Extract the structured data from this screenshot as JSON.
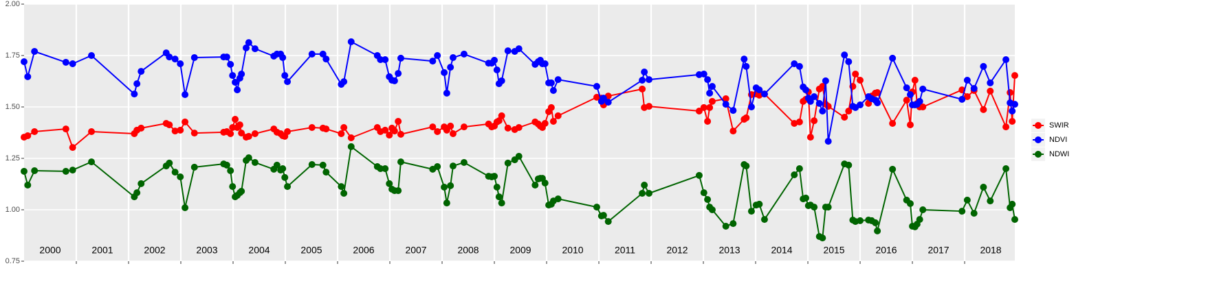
{
  "chart_data": {
    "type": "line",
    "x": [
      2000.0,
      2000.07,
      2000.2,
      2000.8,
      2000.93,
      2001.29,
      2002.11,
      2002.16,
      2002.24,
      2002.72,
      2002.78,
      2002.89,
      2002.99,
      2003.08,
      2003.26,
      2003.82,
      2003.88,
      2003.95,
      2003.99,
      2004.04,
      2004.08,
      2004.13,
      2004.16,
      2004.25,
      2004.3,
      2004.42,
      2004.78,
      2004.84,
      2004.91,
      2004.95,
      2004.99,
      2005.04,
      2005.51,
      2005.72,
      2005.78,
      2006.07,
      2006.12,
      2006.26,
      2006.76,
      2006.82,
      2006.91,
      2006.99,
      2007.04,
      2007.09,
      2007.16,
      2007.21,
      2007.82,
      2007.91,
      2008.04,
      2008.09,
      2008.16,
      2008.21,
      2008.42,
      2008.89,
      2008.95,
      2009.0,
      2009.05,
      2009.09,
      2009.14,
      2009.26,
      2009.39,
      2009.47,
      2009.78,
      2009.84,
      2009.88,
      2009.92,
      2009.97,
      2010.04,
      2010.09,
      2010.13,
      2010.22,
      2010.96,
      2011.05,
      2011.09,
      2011.18,
      2011.83,
      2011.87,
      2011.96,
      2012.92,
      2013.01,
      2013.08,
      2013.12,
      2013.17,
      2013.43,
      2013.57,
      2013.78,
      2013.82,
      2013.92,
      2014.01,
      2014.07,
      2014.17,
      2014.74,
      2014.84,
      2014.91,
      2014.96,
      2015.01,
      2015.05,
      2015.12,
      2015.22,
      2015.28,
      2015.34,
      2015.39,
      2015.7,
      2015.78,
      2015.86,
      2015.91,
      2016.0,
      2016.16,
      2016.22,
      2016.29,
      2016.33,
      2016.62,
      2016.89,
      2016.96,
      2017.0,
      2017.05,
      2017.09,
      2017.14,
      2017.2,
      2017.95,
      2018.05,
      2018.18,
      2018.36,
      2018.49,
      2018.79,
      2018.87,
      2018.91,
      2018.96
    ],
    "series": [
      {
        "name": "SWIR",
        "color": "#ff0000",
        "values": [
          1.353,
          1.36,
          1.38,
          1.393,
          1.303,
          1.38,
          1.37,
          1.387,
          1.397,
          1.42,
          1.413,
          1.383,
          1.387,
          1.427,
          1.373,
          1.377,
          1.38,
          1.37,
          1.4,
          1.44,
          1.4,
          1.413,
          1.373,
          1.353,
          1.357,
          1.37,
          1.393,
          1.377,
          1.37,
          1.36,
          1.357,
          1.38,
          1.4,
          1.397,
          1.393,
          1.37,
          1.4,
          1.35,
          1.4,
          1.38,
          1.387,
          1.363,
          1.397,
          1.383,
          1.43,
          1.367,
          1.403,
          1.38,
          1.403,
          1.387,
          1.407,
          1.37,
          1.403,
          1.417,
          1.403,
          1.407,
          1.427,
          1.433,
          1.457,
          1.397,
          1.39,
          1.4,
          1.427,
          1.417,
          1.407,
          1.4,
          1.42,
          1.477,
          1.497,
          1.43,
          1.457,
          1.547,
          1.543,
          1.51,
          1.553,
          1.587,
          1.497,
          1.503,
          1.48,
          1.497,
          1.43,
          1.497,
          1.527,
          1.54,
          1.383,
          1.44,
          1.447,
          1.56,
          1.563,
          1.557,
          1.563,
          1.42,
          1.427,
          1.527,
          1.537,
          1.573,
          1.353,
          1.433,
          1.587,
          1.6,
          1.513,
          1.503,
          1.45,
          1.48,
          1.6,
          1.66,
          1.63,
          1.517,
          1.553,
          1.567,
          1.57,
          1.42,
          1.533,
          1.413,
          1.573,
          1.63,
          1.517,
          1.5,
          1.5,
          1.583,
          1.55,
          1.58,
          1.487,
          1.577,
          1.403,
          1.57,
          1.43,
          1.653
        ]
      },
      {
        "name": "NDVI",
        "color": "#0000ff",
        "values": [
          1.72,
          1.647,
          1.77,
          1.717,
          1.71,
          1.75,
          1.563,
          1.613,
          1.673,
          1.763,
          1.743,
          1.733,
          1.71,
          1.56,
          1.74,
          1.743,
          1.743,
          1.707,
          1.653,
          1.62,
          1.583,
          1.64,
          1.66,
          1.787,
          1.813,
          1.783,
          1.747,
          1.757,
          1.757,
          1.74,
          1.653,
          1.623,
          1.757,
          1.757,
          1.733,
          1.61,
          1.623,
          1.817,
          1.75,
          1.73,
          1.73,
          1.647,
          1.63,
          1.627,
          1.663,
          1.737,
          1.723,
          1.75,
          1.667,
          1.567,
          1.693,
          1.74,
          1.757,
          1.713,
          1.713,
          1.727,
          1.68,
          1.613,
          1.627,
          1.773,
          1.77,
          1.783,
          1.707,
          1.72,
          1.727,
          1.71,
          1.71,
          1.617,
          1.617,
          1.58,
          1.633,
          1.6,
          1.527,
          1.543,
          1.523,
          1.63,
          1.67,
          1.633,
          1.657,
          1.66,
          1.633,
          1.567,
          1.6,
          1.513,
          1.483,
          1.733,
          1.697,
          1.5,
          1.593,
          1.583,
          1.563,
          1.71,
          1.697,
          1.597,
          1.583,
          1.543,
          1.527,
          1.55,
          1.517,
          1.48,
          1.627,
          1.333,
          1.753,
          1.72,
          1.503,
          1.497,
          1.51,
          1.55,
          1.54,
          1.533,
          1.52,
          1.737,
          1.593,
          1.56,
          1.51,
          1.51,
          1.513,
          1.527,
          1.587,
          1.537,
          1.63,
          1.59,
          1.697,
          1.617,
          1.73,
          1.52,
          1.48,
          1.513
        ]
      },
      {
        "name": "NDWI",
        "color": "#006400",
        "values": [
          1.187,
          1.12,
          1.19,
          1.187,
          1.193,
          1.233,
          1.063,
          1.083,
          1.127,
          1.213,
          1.227,
          1.183,
          1.16,
          1.01,
          1.207,
          1.223,
          1.217,
          1.19,
          1.113,
          1.063,
          1.07,
          1.083,
          1.09,
          1.24,
          1.253,
          1.23,
          1.197,
          1.217,
          1.193,
          1.2,
          1.157,
          1.113,
          1.22,
          1.217,
          1.183,
          1.113,
          1.08,
          1.307,
          1.21,
          1.2,
          1.2,
          1.127,
          1.1,
          1.093,
          1.093,
          1.233,
          1.197,
          1.21,
          1.11,
          1.033,
          1.117,
          1.213,
          1.23,
          1.163,
          1.16,
          1.163,
          1.11,
          1.063,
          1.033,
          1.227,
          1.243,
          1.26,
          1.12,
          1.15,
          1.153,
          1.153,
          1.13,
          1.023,
          1.027,
          1.043,
          1.053,
          1.013,
          0.97,
          0.973,
          0.943,
          1.08,
          1.12,
          1.08,
          1.167,
          1.083,
          1.05,
          1.013,
          1.0,
          0.92,
          0.933,
          1.22,
          1.213,
          0.993,
          1.023,
          1.027,
          0.953,
          1.17,
          1.2,
          1.053,
          1.057,
          1.02,
          1.023,
          1.013,
          0.87,
          0.863,
          1.013,
          1.013,
          1.223,
          1.217,
          0.95,
          0.943,
          0.947,
          0.95,
          0.947,
          0.937,
          0.897,
          1.197,
          1.047,
          1.03,
          0.92,
          0.917,
          0.93,
          0.953,
          1.0,
          0.993,
          1.047,
          0.983,
          1.11,
          1.043,
          1.2,
          1.01,
          1.027,
          0.953
        ]
      }
    ],
    "xlim": [
      2000,
      2018.96
    ],
    "xticks": [
      2001,
      2002,
      2003,
      2004,
      2005,
      2006,
      2007,
      2008,
      2009,
      2010,
      2011,
      2012,
      2013,
      2014,
      2015,
      2016,
      2017,
      2018
    ],
    "year_labels": [
      2000,
      2001,
      2002,
      2003,
      2004,
      2005,
      2006,
      2007,
      2008,
      2009,
      2010,
      2011,
      2012,
      2013,
      2014,
      2015,
      2016,
      2017,
      2018
    ],
    "ylim": [
      0.75,
      2.0
    ],
    "yticks": [
      {
        "value": 0.75,
        "label": "0.75"
      },
      {
        "value": 1.0,
        "label": "1.00"
      },
      {
        "value": 1.25,
        "label": "1.25"
      },
      {
        "value": 1.5,
        "label": "1.50"
      },
      {
        "value": 1.75,
        "label": "1.75"
      },
      {
        "value": 2.0,
        "label": "2.00"
      }
    ],
    "grid": true,
    "legend": "right"
  }
}
